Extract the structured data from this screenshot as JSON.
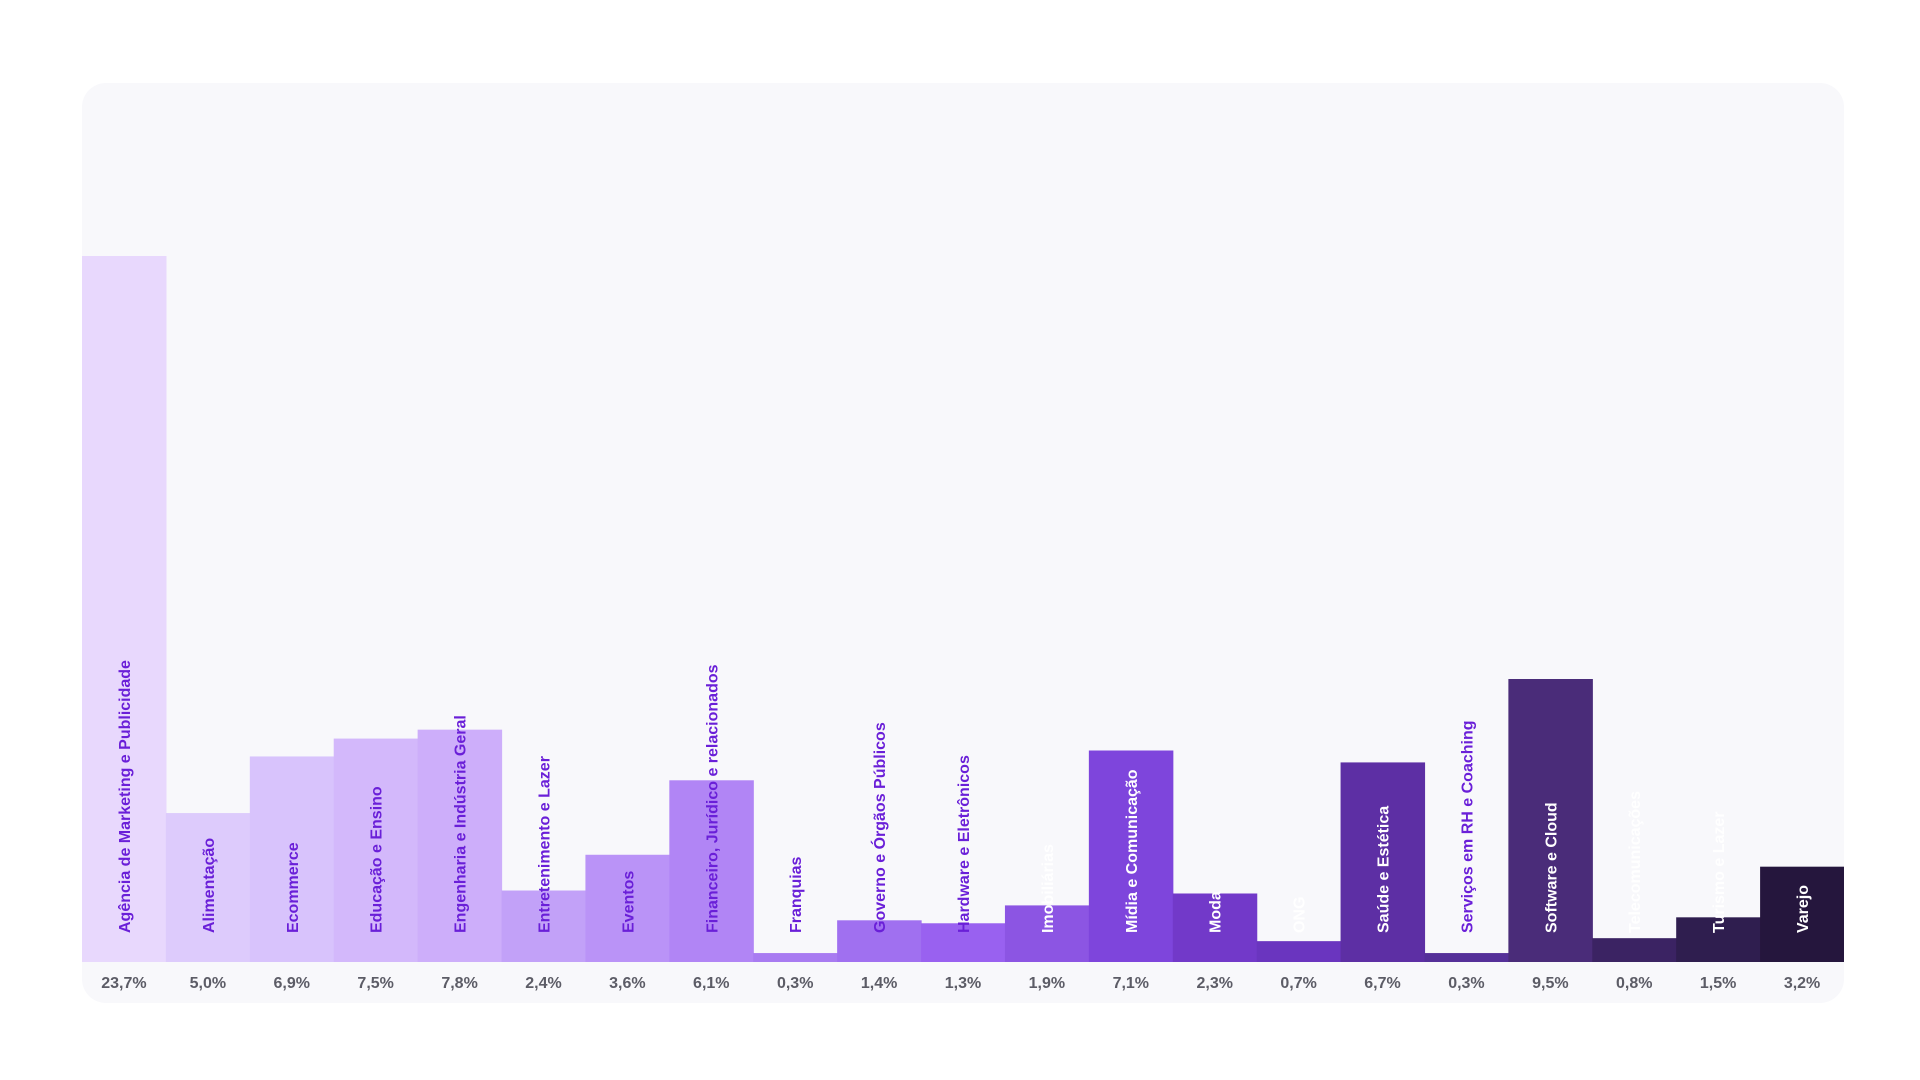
{
  "chart_data": {
    "type": "bar",
    "title": "",
    "xlabel": "",
    "ylabel": "",
    "ylim": [
      0,
      23.7
    ],
    "grid": false,
    "legend": "none",
    "categories": [
      "Agência de Marketing e Publicidade",
      "Alimentação",
      "Ecommerce",
      "Educação e Ensino",
      "Engenharia e Indústria Geral",
      "Entretenimento e Lazer",
      "Eventos",
      "Financeiro, Jurídico e relacionados",
      "Franquias",
      "Governo e Órgãos Públicos",
      "Hardware e Eletrônicos",
      "Imobiliárias",
      "Mídia e Comunicação",
      "Moda",
      "ONG",
      "Saúde e Estética",
      "Serviços em RH e Coaching",
      "Software e Cloud",
      "Telecomunicações",
      "Turismo e Lazer",
      "Varejo"
    ],
    "values": [
      23.7,
      5.0,
      6.9,
      7.5,
      7.8,
      2.4,
      3.6,
      6.1,
      0.3,
      1.4,
      1.3,
      1.9,
      7.1,
      2.3,
      0.7,
      6.7,
      0.3,
      9.5,
      0.8,
      1.5,
      3.2
    ],
    "value_labels": [
      "23,7%",
      "5,0%",
      "6,9%",
      "7,5%",
      "7,8%",
      "2,4%",
      "3,6%",
      "6,1%",
      "0,3%",
      "1,4%",
      "1,3%",
      "1,9%",
      "7,1%",
      "2,3%",
      "0,7%",
      "6,7%",
      "0,3%",
      "9,5%",
      "0,8%",
      "1,5%",
      "3,2%"
    ],
    "colors": [
      "#e8d8fd",
      "#ddcbfc",
      "#d8c3fc",
      "#d3b8fb",
      "#cdaefa",
      "#c2a1f8",
      "#ba93f7",
      "#b185f5",
      "#a87bf1",
      "#a070f0",
      "#9961f0",
      "#8c55e3",
      "#7e45dc",
      "#7239c9",
      "#6a35bf",
      "#5d2fa4",
      "#553099",
      "#4a2c79",
      "#3b2363",
      "#2f1e4f",
      "#25163d"
    ],
    "label_colors": [
      "#6a1fd8",
      "#6a1fd8",
      "#6a1fd8",
      "#6a1fd8",
      "#6a1fd8",
      "#6a1fd8",
      "#6a1fd8",
      "#6a1fd8",
      "#6a1fd8",
      "#6a1fd8",
      "#6a1fd8",
      "#ffffff",
      "#ffffff",
      "#ffffff",
      "#ffffff",
      "#ffffff",
      "#6a1fd8",
      "#ffffff",
      "#ffffff",
      "#ffffff",
      "#ffffff"
    ]
  }
}
